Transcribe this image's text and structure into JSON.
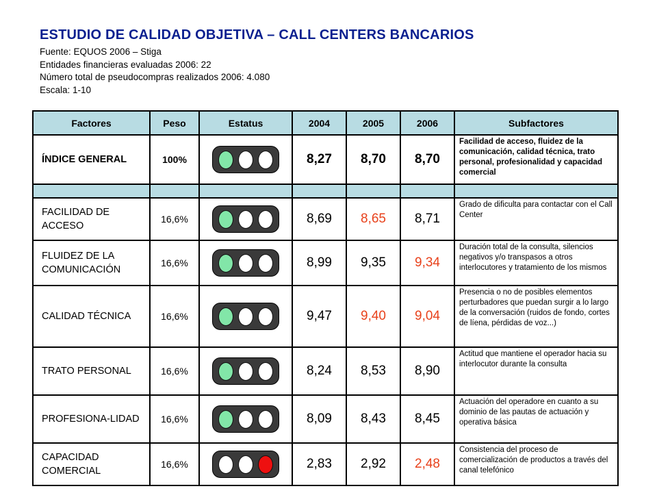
{
  "header": {
    "title": "ESTUDIO DE CALIDAD OBJETIVA – CALL CENTERS BANCARIOS",
    "source": "Fuente: EQUOS 2006 – Stiga",
    "entities": "Entidades financieras evaluadas 2006: 22",
    "purchases": "Número total de pseudocompras realizados 2006: 4.080",
    "scale": "Escala: 1-10"
  },
  "table": {
    "columns": [
      "Factores",
      "Peso",
      "Estatus",
      "2004",
      "2005",
      "2006",
      "Subfactores"
    ],
    "rows": [
      {
        "factor": "ÍNDICE GENERAL",
        "peso": "100%",
        "lights": [
          "green",
          "white",
          "white"
        ],
        "v2004": "8,27",
        "v2005": "8,70",
        "v2006": "8,70",
        "red": [
          false,
          false,
          false
        ],
        "sub": "Facilidad de acceso, fluidez de la comunicación, calidad técnica, trato personal, profesionalidad y capacidad comercial"
      },
      {
        "factor": "FACILIDAD DE ACCESO",
        "peso": "16,6%",
        "lights": [
          "green",
          "white",
          "white"
        ],
        "v2004": "8,69",
        "v2005": "8,65",
        "v2006": "8,71",
        "red": [
          false,
          true,
          false
        ],
        "sub": "Grado de dificulta para contactar con el Call Center"
      },
      {
        "factor": "FLUIDEZ DE LA COMUNICACIÓN",
        "peso": "16,6%",
        "lights": [
          "green",
          "white",
          "white"
        ],
        "v2004": "8,99",
        "v2005": "9,35",
        "v2006": "9,34",
        "red": [
          false,
          false,
          true
        ],
        "sub": "Duración total de la consulta, silencios negativos y/o transpasos a otros interlocutores y tratamiento de los mismos"
      },
      {
        "factor": "CALIDAD TÉCNICA",
        "peso": "16,6%",
        "lights": [
          "green",
          "white",
          "white"
        ],
        "v2004": "9,47",
        "v2005": "9,40",
        "v2006": "9,04",
        "red": [
          false,
          true,
          true
        ],
        "sub": "Presencia o no de posibles elementos perturbadores que puedan surgir a lo largo de la conversación (ruidos de fondo, cortes de líena, pérdidas de voz...)"
      },
      {
        "factor": "TRATO PERSONAL",
        "peso": "16,6%",
        "lights": [
          "green",
          "white",
          "white"
        ],
        "v2004": "8,24",
        "v2005": "8,53",
        "v2006": "8,90",
        "red": [
          false,
          false,
          false
        ],
        "sub": "Actitud que mantiene el operador hacia su interlocutor durante la consulta"
      },
      {
        "factor": "PROFESIONA-LIDAD",
        "peso": "16,6%",
        "lights": [
          "green",
          "white",
          "white"
        ],
        "v2004": "8,09",
        "v2005": "8,43",
        "v2006": "8,45",
        "red": [
          false,
          false,
          false
        ],
        "sub": "Actuación del operadore en cuanto a su dominio de las pautas de actuación y operativa básica"
      },
      {
        "factor": "CAPACIDAD COMERCIAL",
        "peso": "16,6%",
        "lights": [
          "white",
          "white",
          "red"
        ],
        "v2004": "2,83",
        "v2005": "2,92",
        "v2006": "2,48",
        "red": [
          false,
          false,
          true
        ],
        "sub": "Consistencia del proceso de comercialización de productos a través del canal telefónico"
      }
    ]
  }
}
